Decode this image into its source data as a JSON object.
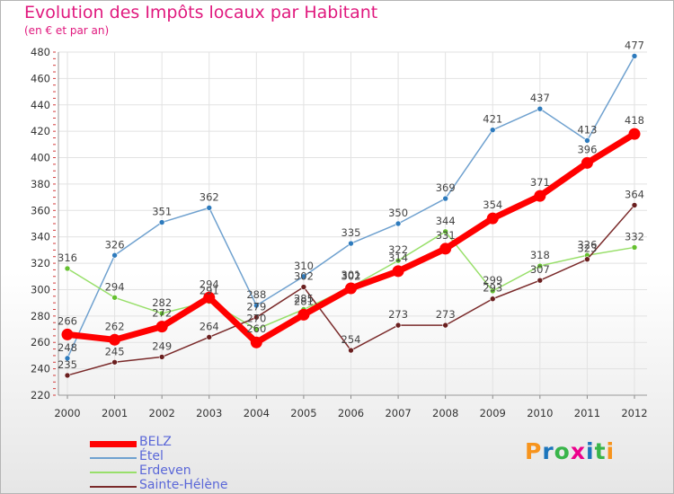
{
  "title": "Evolution des Impôts locaux par Habitant",
  "subtitle": "(en € et par an)",
  "logo": {
    "text": "Proxiti",
    "colors": [
      "#f7941d",
      "#1c75bc",
      "#39b54a",
      "#ec008c",
      "#1c75bc",
      "#39b54a",
      "#f7941d"
    ]
  },
  "chart_data": {
    "type": "line",
    "title": "Evolution des Impôts locaux par Habitant",
    "subtitle": "(en € et par an)",
    "xlabel": "",
    "ylabel": "",
    "categories": [
      "2000",
      "2001",
      "2002",
      "2003",
      "2004",
      "2005",
      "2006",
      "2007",
      "2008",
      "2009",
      "2010",
      "2011",
      "2012"
    ],
    "ylim": [
      220,
      480
    ],
    "yticks": [
      "220",
      "240",
      "260",
      "280",
      "300",
      "320",
      "340",
      "360",
      "380",
      "400",
      "420",
      "440",
      "460",
      "480"
    ],
    "grid": true,
    "legend_position": "bottom-left",
    "series": [
      {
        "name": "Étel",
        "color": "#6fa1cf",
        "marker": "#2e7bbd",
        "values": [
          248,
          326,
          351,
          362,
          288,
          310,
          335,
          350,
          369,
          421,
          437,
          413,
          477
        ]
      },
      {
        "name": "Erdeven",
        "color": "#98df6a",
        "marker": "#65c030",
        "values": [
          316,
          294,
          282,
          291,
          270,
          285,
          302,
          322,
          344,
          299,
          318,
          326,
          332
        ]
      },
      {
        "name": "Sainte-Hélène",
        "color": "#7a2a2a",
        "marker": "#6a1f1f",
        "values": [
          235,
          245,
          249,
          264,
          279,
          302,
          254,
          273,
          273,
          293,
          307,
          323,
          364
        ]
      },
      {
        "name": "BELZ",
        "color": "#ff0000",
        "marker": "#ff0000",
        "values": [
          266,
          262,
          272,
          294,
          260,
          281,
          301,
          314,
          331,
          354,
          371,
          396,
          418
        ]
      }
    ],
    "legend_order": [
      "BELZ",
      "Étel",
      "Erdeven",
      "Sainte-Hélène"
    ]
  }
}
